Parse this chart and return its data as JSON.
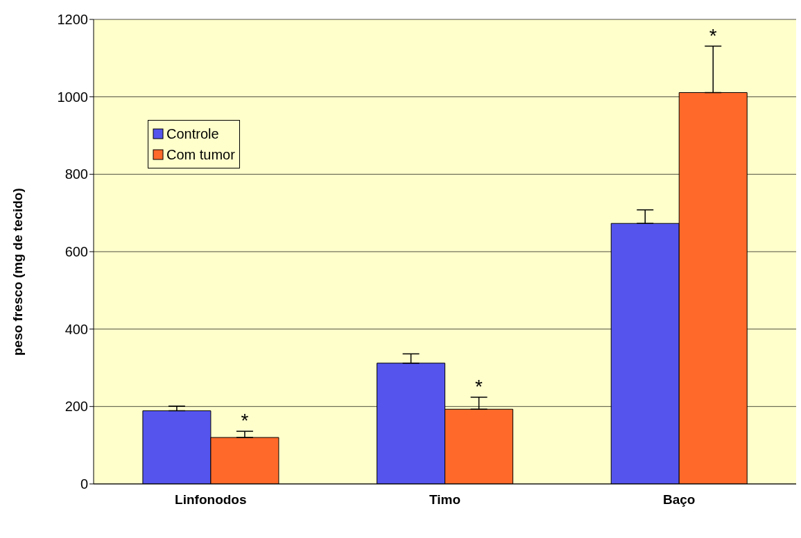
{
  "chart_data": {
    "type": "bar",
    "ylabel": "peso fresco (mg de tecido)",
    "categories": [
      "Linfonodos",
      "Timo",
      "Baço"
    ],
    "series": [
      {
        "name": "Controle",
        "color": "#5555ee",
        "values": [
          189,
          312,
          673
        ],
        "errors": [
          [
            189,
            201
          ],
          [
            312,
            336
          ],
          [
            673,
            708
          ]
        ]
      },
      {
        "name": "Com tumor",
        "color": "#ff6a2a",
        "values": [
          120,
          193,
          1011
        ],
        "errors": [
          [
            120,
            136
          ],
          [
            193,
            224
          ],
          [
            1011,
            1131
          ]
        ],
        "value_labels": [
          "*",
          "*",
          "*"
        ]
      }
    ],
    "ylim": [
      0,
      1200
    ],
    "yticks": [
      0,
      200,
      400,
      600,
      800,
      1000,
      1200
    ],
    "grid": "y",
    "legend": "top left"
  }
}
